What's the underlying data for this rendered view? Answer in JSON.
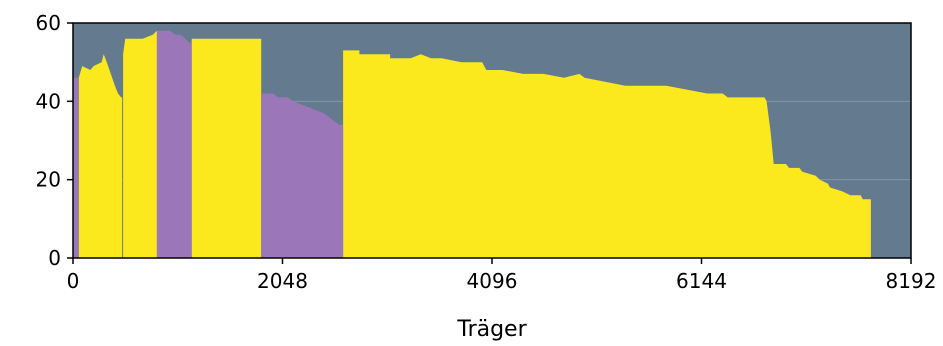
{
  "chart_data": {
    "type": "area",
    "xlabel": "Träger",
    "ylabel": "",
    "xlim": [
      0,
      8192
    ],
    "ylim": [
      0,
      60
    ],
    "x_ticks": [
      0,
      2048,
      4096,
      6144,
      8192
    ],
    "y_ticks": [
      0,
      20,
      40,
      60
    ],
    "x_tick_labels": [
      "0",
      "2048",
      "4096",
      "6144",
      "8192"
    ],
    "y_tick_labels": [
      "0",
      "20",
      "40",
      "60"
    ],
    "grid": "horizontal",
    "colors": {
      "background": "#647b8f",
      "grid": "#8196a6",
      "yellow": "#fbe81d",
      "purple": "#9b76b9"
    },
    "series": [
      {
        "color": "#fbe81d",
        "points": [
          [
            57,
            0
          ],
          [
            57,
            46
          ],
          [
            90,
            49
          ],
          [
            170,
            48
          ],
          [
            200,
            49
          ],
          [
            280,
            50
          ],
          [
            300,
            52
          ],
          [
            330,
            50
          ],
          [
            370,
            47
          ],
          [
            410,
            44
          ],
          [
            440,
            42
          ],
          [
            470,
            41
          ],
          [
            480,
            41
          ],
          [
            480,
            0
          ],
          [
            490,
            0
          ],
          [
            490,
            52
          ],
          [
            510,
            56
          ],
          [
            620,
            56
          ],
          [
            680,
            56
          ],
          [
            780,
            57
          ],
          [
            820,
            58
          ],
          [
            820,
            0
          ],
          [
            1160,
            0
          ],
          [
            1160,
            56
          ],
          [
            1840,
            56
          ],
          [
            1840,
            0
          ],
          [
            2640,
            0
          ],
          [
            2640,
            53
          ],
          [
            2800,
            53
          ],
          [
            2800,
            52
          ],
          [
            3100,
            52
          ],
          [
            3100,
            51
          ],
          [
            3300,
            51
          ],
          [
            3400,
            52
          ],
          [
            3500,
            51
          ],
          [
            3600,
            51
          ],
          [
            3800,
            50
          ],
          [
            4000,
            50
          ],
          [
            4040,
            48
          ],
          [
            4200,
            48
          ],
          [
            4400,
            47
          ],
          [
            4600,
            47
          ],
          [
            4800,
            46
          ],
          [
            4950,
            47
          ],
          [
            5000,
            46
          ],
          [
            5200,
            45
          ],
          [
            5400,
            44
          ],
          [
            5800,
            44
          ],
          [
            6000,
            43
          ],
          [
            6200,
            42
          ],
          [
            6350,
            42
          ],
          [
            6400,
            41
          ],
          [
            6600,
            41
          ],
          [
            6760,
            41
          ],
          [
            6780,
            40
          ],
          [
            6820,
            32
          ],
          [
            6850,
            24
          ],
          [
            6970,
            24
          ],
          [
            7000,
            23
          ],
          [
            7100,
            23
          ],
          [
            7130,
            22
          ],
          [
            7260,
            21
          ],
          [
            7300,
            20
          ],
          [
            7380,
            19
          ],
          [
            7400,
            18
          ],
          [
            7520,
            17
          ],
          [
            7600,
            16
          ],
          [
            7700,
            16
          ],
          [
            7720,
            15
          ],
          [
            7800,
            15
          ],
          [
            7800,
            0
          ]
        ]
      },
      {
        "color": "#9b76b9",
        "points": [
          [
            0,
            0
          ],
          [
            0,
            46
          ],
          [
            57,
            46
          ],
          [
            57,
            0
          ]
        ]
      },
      {
        "color": "#9b76b9",
        "points": [
          [
            820,
            0
          ],
          [
            820,
            58
          ],
          [
            950,
            58
          ],
          [
            1000,
            57
          ],
          [
            1050,
            57
          ],
          [
            1100,
            56
          ],
          [
            1130,
            55
          ],
          [
            1160,
            55
          ],
          [
            1160,
            0
          ]
        ]
      },
      {
        "color": "#9b76b9",
        "points": [
          [
            1840,
            0
          ],
          [
            1840,
            42
          ],
          [
            1960,
            42
          ],
          [
            2000,
            41
          ],
          [
            2100,
            41
          ],
          [
            2150,
            40
          ],
          [
            2250,
            39
          ],
          [
            2350,
            38
          ],
          [
            2450,
            37
          ],
          [
            2500,
            36
          ],
          [
            2550,
            35
          ],
          [
            2600,
            34
          ],
          [
            2640,
            34
          ],
          [
            2640,
            0
          ]
        ]
      }
    ]
  }
}
